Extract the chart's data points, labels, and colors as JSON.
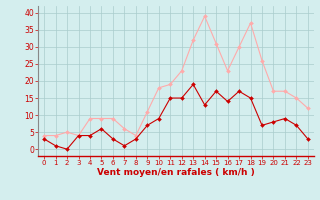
{
  "x": [
    0,
    1,
    2,
    3,
    4,
    5,
    6,
    7,
    8,
    9,
    10,
    11,
    12,
    13,
    14,
    15,
    16,
    17,
    18,
    19,
    20,
    21,
    22,
    23
  ],
  "wind_avg": [
    3,
    1,
    0,
    4,
    4,
    6,
    3,
    1,
    3,
    7,
    9,
    15,
    15,
    19,
    13,
    17,
    14,
    17,
    15,
    7,
    8,
    9,
    7,
    3
  ],
  "wind_gust": [
    4,
    4,
    5,
    4,
    9,
    9,
    9,
    6,
    4,
    11,
    18,
    19,
    23,
    32,
    39,
    31,
    23,
    30,
    37,
    26,
    17,
    17,
    15,
    12
  ],
  "avg_color": "#cc0000",
  "gust_color": "#ffaaaa",
  "bg_color": "#d4eeee",
  "grid_color": "#aacccc",
  "xlabel": "Vent moyen/en rafales ( km/h )",
  "xlabel_color": "#cc0000",
  "tick_color": "#cc0000",
  "ylim": [
    -2,
    42
  ],
  "yticks": [
    0,
    5,
    10,
    15,
    20,
    25,
    30,
    35,
    40
  ],
  "xticks": [
    0,
    1,
    2,
    3,
    4,
    5,
    6,
    7,
    8,
    9,
    10,
    11,
    12,
    13,
    14,
    15,
    16,
    17,
    18,
    19,
    20,
    21,
    22,
    23
  ]
}
